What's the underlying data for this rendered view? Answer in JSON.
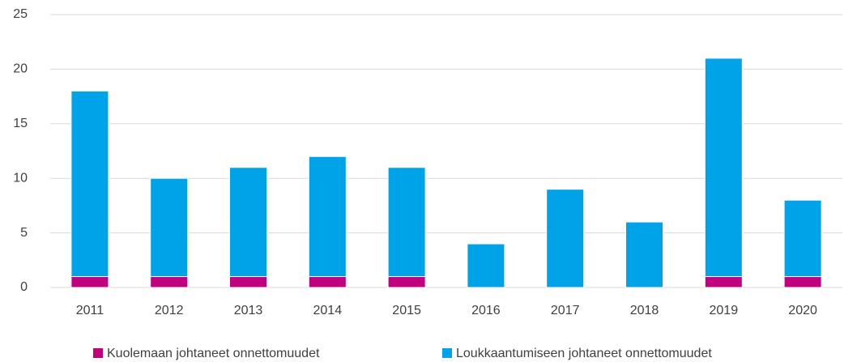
{
  "chart_data": {
    "type": "stacked_bar",
    "categories": [
      "2011",
      "2012",
      "2013",
      "2014",
      "2015",
      "2016",
      "2017",
      "2018",
      "2019",
      "2020"
    ],
    "series": [
      {
        "name": "Kuolemaan johtaneet onnettomuudet",
        "color": "#c0007f",
        "values": [
          1,
          1,
          1,
          1,
          1,
          0,
          0,
          0,
          1,
          1
        ]
      },
      {
        "name": "Loukkaantumiseen johtaneet onnettomuudet",
        "color": "#00a2e8",
        "values": [
          17,
          9,
          10,
          11,
          10,
          4,
          9,
          6,
          20,
          7
        ]
      }
    ],
    "ylim": [
      0,
      25
    ],
    "yticks": [
      0,
      5,
      10,
      15,
      20,
      25
    ],
    "grid": true,
    "legend": "bottom"
  }
}
